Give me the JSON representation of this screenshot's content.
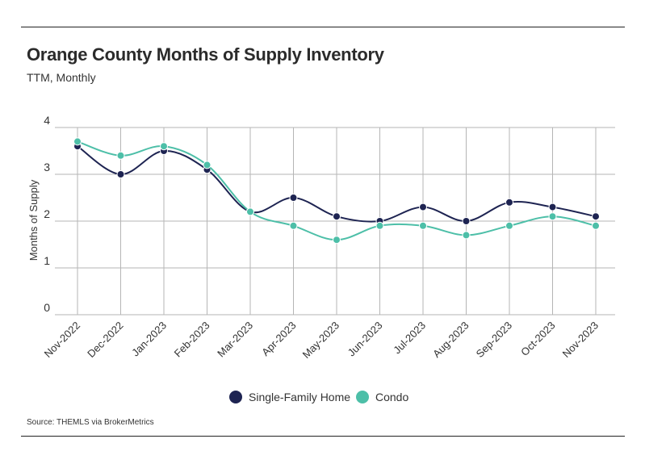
{
  "header": {
    "title": "Orange County Months of Supply Inventory",
    "subtitle": "TTM, Monthly"
  },
  "footer": {
    "source": "Source:  THEMLS via BrokerMetrics"
  },
  "colors": {
    "single_family": "#1e2452",
    "condo": "#4dbfa8",
    "grid": "#b5b5b5",
    "text": "#333333"
  },
  "chart_data": {
    "type": "line",
    "title": "Orange County Months of Supply Inventory",
    "subtitle": "TTM, Monthly",
    "xlabel": "",
    "ylabel": "Months of Supply",
    "ylim": [
      0,
      4
    ],
    "yticks": [
      "0",
      "1",
      "2",
      "3",
      "4"
    ],
    "grid": true,
    "smooth": true,
    "legend_position": "bottom",
    "categories": [
      "Nov-2022",
      "Dec-2022",
      "Jan-2023",
      "Feb-2023",
      "Mar-2023",
      "Apr-2023",
      "May-2023",
      "Jun-2023",
      "Jul-2023",
      "Aug-2023",
      "Sep-2023",
      "Oct-2023",
      "Nov-2023"
    ],
    "series": [
      {
        "name": "Single-Family Home",
        "color": "#1e2452",
        "values": [
          3.6,
          3.0,
          3.5,
          3.1,
          2.2,
          2.5,
          2.1,
          2.0,
          2.3,
          2.0,
          2.4,
          2.3,
          2.1
        ]
      },
      {
        "name": "Condo",
        "color": "#4dbfa8",
        "values": [
          3.7,
          3.4,
          3.6,
          3.2,
          2.2,
          1.9,
          1.6,
          1.9,
          1.9,
          1.7,
          1.9,
          2.1,
          1.9
        ]
      }
    ]
  }
}
